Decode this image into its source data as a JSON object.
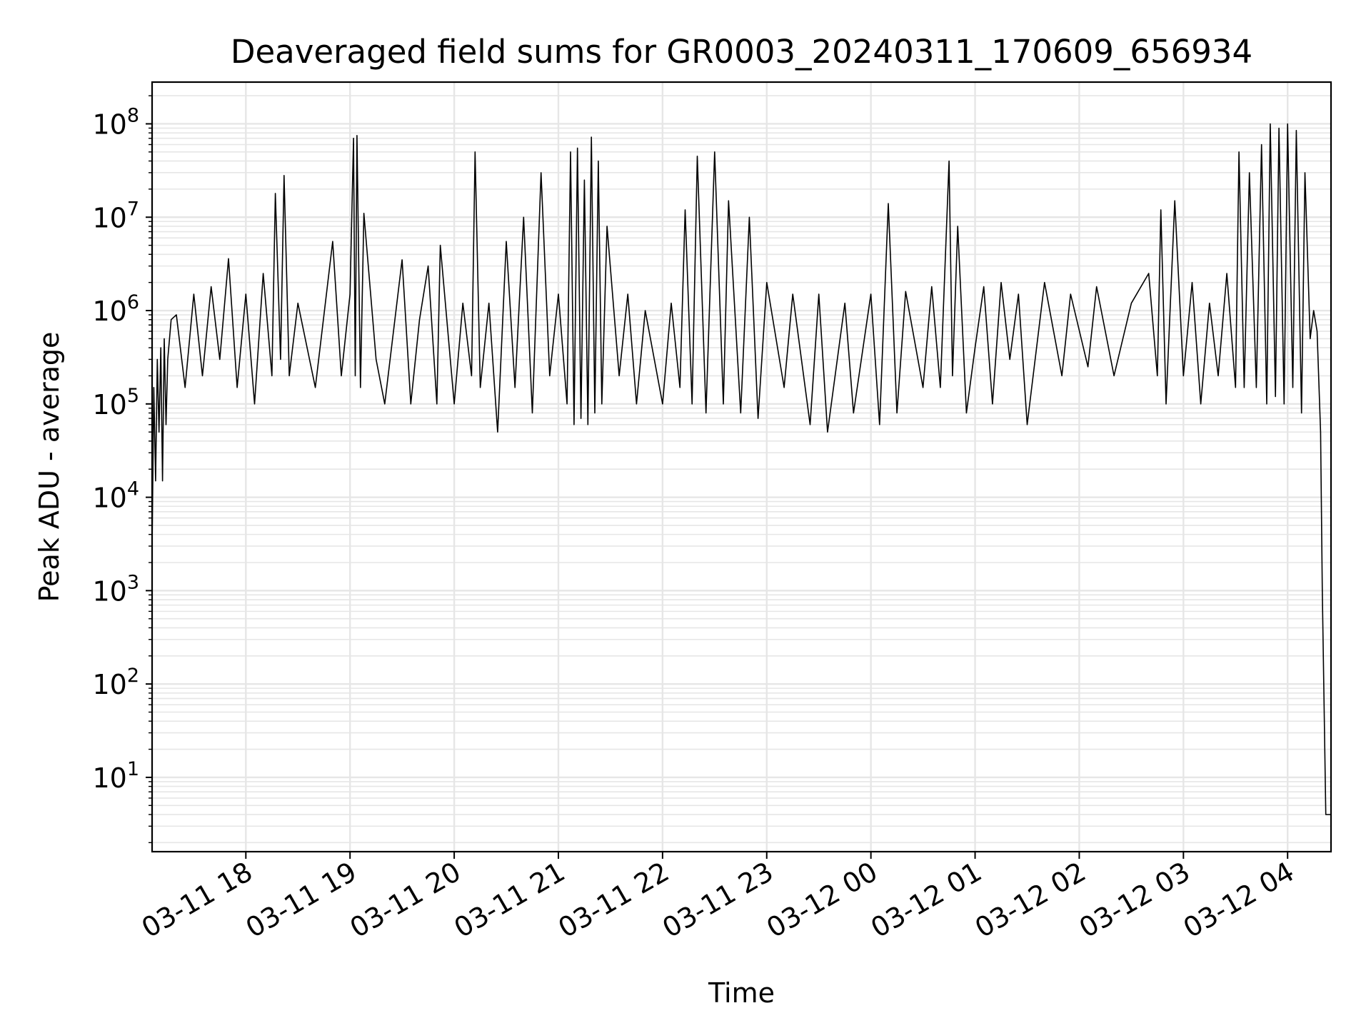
{
  "chart_data": {
    "type": "line",
    "title": "Deaveraged field sums for GR0003_20240311_170609_656934",
    "xlabel": "Time",
    "ylabel": "Peak ADU - average",
    "yscale": "log",
    "grid": true,
    "grid_minor": true,
    "line_color": "#000000",
    "grid_color": "#e6e6e6",
    "xlim": [
      "03-11 17:06",
      "03-12 04:25"
    ],
    "ylim": [
      1.6,
      280000000
    ],
    "x_ticks": [
      "03-11 18",
      "03-11 19",
      "03-11 20",
      "03-11 21",
      "03-11 22",
      "03-11 23",
      "03-12 00",
      "03-12 01",
      "03-12 02",
      "03-12 03",
      "03-12 04"
    ],
    "y_ticks": [
      {
        "base": "10",
        "exp": "1"
      },
      {
        "base": "10",
        "exp": "2"
      },
      {
        "base": "10",
        "exp": "3"
      },
      {
        "base": "10",
        "exp": "4"
      },
      {
        "base": "10",
        "exp": "5"
      },
      {
        "base": "10",
        "exp": "6"
      },
      {
        "base": "10",
        "exp": "7"
      },
      {
        "base": "10",
        "exp": "8"
      }
    ],
    "series": [
      {
        "points": [
          [
            "03-11 17:06",
            3000
          ],
          [
            "03-11 17:07",
            150000
          ],
          [
            "03-11 17:08",
            15000
          ],
          [
            "03-11 17:09",
            300000
          ],
          [
            "03-11 17:10",
            50000
          ],
          [
            "03-11 17:11",
            400000
          ],
          [
            "03-11 17:12",
            15000
          ],
          [
            "03-11 17:13",
            500000
          ],
          [
            "03-11 17:14",
            60000
          ],
          [
            "03-11 17:15",
            300000
          ],
          [
            "03-11 17:17",
            800000
          ],
          [
            "03-11 17:20",
            900000
          ],
          [
            "03-11 17:25",
            150000
          ],
          [
            "03-11 17:30",
            1500000
          ],
          [
            "03-11 17:35",
            200000
          ],
          [
            "03-11 17:40",
            1800000
          ],
          [
            "03-11 17:45",
            300000
          ],
          [
            "03-11 17:50",
            3600000
          ],
          [
            "03-11 17:55",
            150000
          ],
          [
            "03-11 18:00",
            1500000
          ],
          [
            "03-11 18:05",
            100000
          ],
          [
            "03-11 18:10",
            2500000
          ],
          [
            "03-11 18:15",
            200000
          ],
          [
            "03-11 18:17",
            18000000
          ],
          [
            "03-11 18:20",
            300000
          ],
          [
            "03-11 18:22",
            28000000
          ],
          [
            "03-11 18:25",
            200000
          ],
          [
            "03-11 18:30",
            1200000
          ],
          [
            "03-11 18:40",
            150000
          ],
          [
            "03-11 18:50",
            5500000
          ],
          [
            "03-11 18:55",
            200000
          ],
          [
            "03-11 19:00",
            1500000
          ],
          [
            "03-11 19:02",
            70000000
          ],
          [
            "03-11 19:03",
            200000
          ],
          [
            "03-11 19:04",
            75000000
          ],
          [
            "03-11 19:06",
            150000
          ],
          [
            "03-11 19:08",
            11000000
          ],
          [
            "03-11 19:15",
            300000
          ],
          [
            "03-11 19:20",
            100000
          ],
          [
            "03-11 19:30",
            3500000
          ],
          [
            "03-11 19:35",
            100000
          ],
          [
            "03-11 19:40",
            800000
          ],
          [
            "03-11 19:45",
            3000000
          ],
          [
            "03-11 19:50",
            100000
          ],
          [
            "03-11 19:52",
            5000000
          ],
          [
            "03-11 20:00",
            100000
          ],
          [
            "03-11 20:05",
            1200000
          ],
          [
            "03-11 20:10",
            200000
          ],
          [
            "03-11 20:12",
            50000000
          ],
          [
            "03-11 20:15",
            150000
          ],
          [
            "03-11 20:20",
            1200000
          ],
          [
            "03-11 20:25",
            50000
          ],
          [
            "03-11 20:30",
            5500000
          ],
          [
            "03-11 20:35",
            150000
          ],
          [
            "03-11 20:40",
            10000000
          ],
          [
            "03-11 20:45",
            80000
          ],
          [
            "03-11 20:50",
            30000000
          ],
          [
            "03-11 20:55",
            200000
          ],
          [
            "03-11 21:00",
            1500000
          ],
          [
            "03-11 21:05",
            100000
          ],
          [
            "03-11 21:07",
            50000000
          ],
          [
            "03-11 21:09",
            60000
          ],
          [
            "03-11 21:11",
            55000000
          ],
          [
            "03-11 21:13",
            70000
          ],
          [
            "03-11 21:15",
            25000000
          ],
          [
            "03-11 21:17",
            60000
          ],
          [
            "03-11 21:19",
            72000000
          ],
          [
            "03-11 21:21",
            80000
          ],
          [
            "03-11 21:23",
            40000000
          ],
          [
            "03-11 21:25",
            100000
          ],
          [
            "03-11 21:28",
            8000000
          ],
          [
            "03-11 21:35",
            200000
          ],
          [
            "03-11 21:40",
            1500000
          ],
          [
            "03-11 21:45",
            100000
          ],
          [
            "03-11 21:50",
            1000000
          ],
          [
            "03-11 22:00",
            100000
          ],
          [
            "03-11 22:05",
            1200000
          ],
          [
            "03-11 22:10",
            150000
          ],
          [
            "03-11 22:13",
            12000000
          ],
          [
            "03-11 22:17",
            100000
          ],
          [
            "03-11 22:20",
            45000000
          ],
          [
            "03-11 22:25",
            80000
          ],
          [
            "03-11 22:30",
            50000000
          ],
          [
            "03-11 22:35",
            100000
          ],
          [
            "03-11 22:38",
            15000000
          ],
          [
            "03-11 22:45",
            80000
          ],
          [
            "03-11 22:50",
            10000000
          ],
          [
            "03-11 22:55",
            70000
          ],
          [
            "03-11 23:00",
            2000000
          ],
          [
            "03-11 23:10",
            150000
          ],
          [
            "03-11 23:15",
            1500000
          ],
          [
            "03-11 23:25",
            60000
          ],
          [
            "03-11 23:30",
            1500000
          ],
          [
            "03-11 23:35",
            50000
          ],
          [
            "03-11 23:45",
            1200000
          ],
          [
            "03-11 23:50",
            80000
          ],
          [
            "03-12 00:00",
            1500000
          ],
          [
            "03-12 00:05",
            60000
          ],
          [
            "03-12 00:10",
            14000000
          ],
          [
            "03-12 00:15",
            80000
          ],
          [
            "03-12 00:20",
            1600000
          ],
          [
            "03-12 00:30",
            150000
          ],
          [
            "03-12 00:35",
            1800000
          ],
          [
            "03-12 00:40",
            150000
          ],
          [
            "03-12 00:45",
            40000000
          ],
          [
            "03-12 00:47",
            200000
          ],
          [
            "03-12 00:50",
            8000000
          ],
          [
            "03-12 00:55",
            80000
          ],
          [
            "03-12 01:00",
            400000
          ],
          [
            "03-12 01:05",
            1800000
          ],
          [
            "03-12 01:10",
            100000
          ],
          [
            "03-12 01:15",
            2000000
          ],
          [
            "03-12 01:20",
            300000
          ],
          [
            "03-12 01:25",
            1500000
          ],
          [
            "03-12 01:30",
            60000
          ],
          [
            "03-12 01:40",
            2000000
          ],
          [
            "03-12 01:50",
            200000
          ],
          [
            "03-12 01:55",
            1500000
          ],
          [
            "03-12 02:05",
            250000
          ],
          [
            "03-12 02:10",
            1800000
          ],
          [
            "03-12 02:20",
            200000
          ],
          [
            "03-12 02:30",
            1200000
          ],
          [
            "03-12 02:40",
            2500000
          ],
          [
            "03-12 02:45",
            200000
          ],
          [
            "03-12 02:47",
            12000000
          ],
          [
            "03-12 02:50",
            100000
          ],
          [
            "03-12 02:55",
            15000000
          ],
          [
            "03-12 03:00",
            200000
          ],
          [
            "03-12 03:05",
            2000000
          ],
          [
            "03-12 03:10",
            100000
          ],
          [
            "03-12 03:15",
            1200000
          ],
          [
            "03-12 03:20",
            200000
          ],
          [
            "03-12 03:25",
            2500000
          ],
          [
            "03-12 03:30",
            150000
          ],
          [
            "03-12 03:32",
            50000000
          ],
          [
            "03-12 03:35",
            150000
          ],
          [
            "03-12 03:38",
            30000000
          ],
          [
            "03-12 03:42",
            150000
          ],
          [
            "03-12 03:45",
            60000000
          ],
          [
            "03-12 03:48",
            100000
          ],
          [
            "03-12 03:50",
            100000000
          ],
          [
            "03-12 03:53",
            120000
          ],
          [
            "03-12 03:55",
            90000000
          ],
          [
            "03-12 03:58",
            100000
          ],
          [
            "03-12 04:00",
            100000000
          ],
          [
            "03-12 04:03",
            150000
          ],
          [
            "03-12 04:05",
            85000000
          ],
          [
            "03-12 04:08",
            80000
          ],
          [
            "03-12 04:10",
            30000000
          ],
          [
            "03-12 04:13",
            500000
          ],
          [
            "03-12 04:15",
            1000000
          ],
          [
            "03-12 04:17",
            600000
          ],
          [
            "03-12 04:19",
            50000
          ],
          [
            "03-12 04:20",
            1000
          ],
          [
            "03-12 04:21",
            60
          ],
          [
            "03-12 04:22",
            4
          ],
          [
            "03-12 04:25",
            4
          ]
        ]
      }
    ]
  }
}
